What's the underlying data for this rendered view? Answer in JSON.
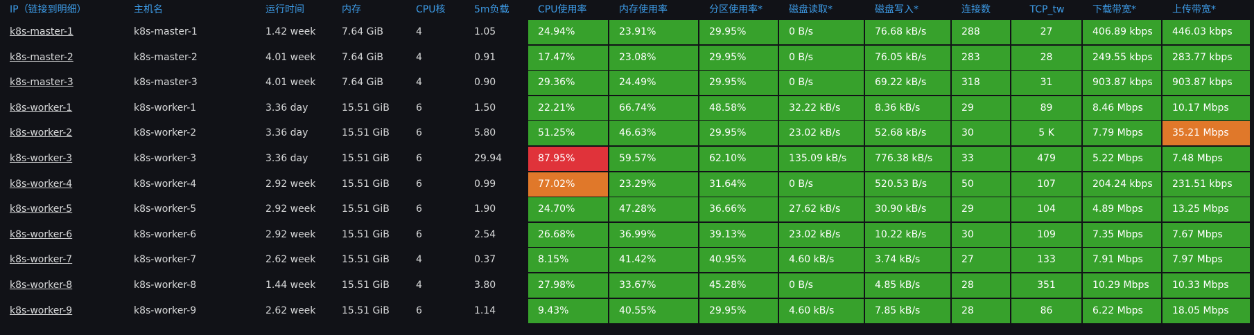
{
  "table": {
    "headers": [
      "IP（链接到明细）",
      "主机名",
      "运行时间",
      "内存",
      "CPU核",
      "5m负载",
      "CPU使用率",
      "内存使用率",
      "分区使用率*",
      "磁盘读取*",
      "磁盘写入*",
      "连接数",
      "TCP_tw",
      "下载带宽*",
      "上传带宽*"
    ],
    "rows": [
      [
        "k8s-master-1",
        "k8s-master-1",
        "1.42 week",
        "7.64 GiB",
        "4",
        "1.05",
        "24.94%",
        "23.91%",
        "29.95%",
        "0 B/s",
        "76.68 kB/s",
        "288",
        "27",
        "406.89 kbps",
        "446.03 kbps"
      ],
      [
        "k8s-master-2",
        "k8s-master-2",
        "4.01 week",
        "7.64 GiB",
        "4",
        "0.91",
        "17.47%",
        "23.08%",
        "29.95%",
        "0 B/s",
        "76.05 kB/s",
        "283",
        "28",
        "249.55 kbps",
        "283.77 kbps"
      ],
      [
        "k8s-master-3",
        "k8s-master-3",
        "4.01 week",
        "7.64 GiB",
        "4",
        "0.90",
        "29.36%",
        "24.49%",
        "29.95%",
        "0 B/s",
        "69.22 kB/s",
        "318",
        "31",
        "903.87 kbps",
        "903.87 kbps"
      ],
      [
        "k8s-worker-1",
        "k8s-worker-1",
        "3.36 day",
        "15.51 GiB",
        "6",
        "1.50",
        "22.21%",
        "66.74%",
        "48.58%",
        "32.22 kB/s",
        "8.36 kB/s",
        "29",
        "89",
        "8.46 Mbps",
        "10.17 Mbps"
      ],
      [
        "k8s-worker-2",
        "k8s-worker-2",
        "3.36 day",
        "15.51 GiB",
        "6",
        "5.80",
        "51.25%",
        "46.63%",
        "29.95%",
        "23.02 kB/s",
        "52.68 kB/s",
        "30",
        "5 K",
        "7.79 Mbps",
        "35.21 Mbps"
      ],
      [
        "k8s-worker-3",
        "k8s-worker-3",
        "3.36 day",
        "15.51 GiB",
        "6",
        "29.94",
        "87.95%",
        "59.57%",
        "62.10%",
        "135.09 kB/s",
        "776.38 kB/s",
        "33",
        "479",
        "5.22 Mbps",
        "7.48 Mbps"
      ],
      [
        "k8s-worker-4",
        "k8s-worker-4",
        "2.92 week",
        "15.51 GiB",
        "6",
        "0.99",
        "77.02%",
        "23.29%",
        "31.64%",
        "0 B/s",
        "520.53 B/s",
        "50",
        "107",
        "204.24 kbps",
        "231.51 kbps"
      ],
      [
        "k8s-worker-5",
        "k8s-worker-5",
        "2.92 week",
        "15.51 GiB",
        "6",
        "1.90",
        "24.70%",
        "47.28%",
        "36.66%",
        "27.62 kB/s",
        "30.90 kB/s",
        "29",
        "104",
        "4.89 Mbps",
        "13.25 Mbps"
      ],
      [
        "k8s-worker-6",
        "k8s-worker-6",
        "2.92 week",
        "15.51 GiB",
        "6",
        "2.54",
        "26.68%",
        "36.99%",
        "39.13%",
        "23.02 kB/s",
        "10.22 kB/s",
        "30",
        "109",
        "7.35 Mbps",
        "7.67 Mbps"
      ],
      [
        "k8s-worker-7",
        "k8s-worker-7",
        "2.62 week",
        "15.51 GiB",
        "4",
        "0.37",
        "8.15%",
        "41.42%",
        "40.95%",
        "4.60 kB/s",
        "3.74 kB/s",
        "27",
        "133",
        "7.91 Mbps",
        "7.97 Mbps"
      ],
      [
        "k8s-worker-8",
        "k8s-worker-8",
        "1.44 week",
        "15.51 GiB",
        "4",
        "3.80",
        "27.98%",
        "33.67%",
        "45.28%",
        "0 B/s",
        "4.85 kB/s",
        "28",
        "351",
        "10.29 Mbps",
        "10.33 Mbps"
      ],
      [
        "k8s-worker-9",
        "k8s-worker-9",
        "2.62 week",
        "15.51 GiB",
        "6",
        "1.14",
        "9.43%",
        "40.55%",
        "29.95%",
        "4.60 kB/s",
        "7.85 kB/s",
        "28",
        "86",
        "6.22 Mbps",
        "18.05 Mbps"
      ]
    ],
    "cell_colors": [
      [
        "#37a12c",
        "#37a12c",
        "#37a12c",
        "#37a12c",
        "#37a12c",
        "#37a12c",
        "#37a12c",
        "#37a12c",
        "#37a12c"
      ],
      [
        "#37a12c",
        "#37a12c",
        "#37a12c",
        "#37a12c",
        "#37a12c",
        "#37a12c",
        "#37a12c",
        "#37a12c",
        "#37a12c"
      ],
      [
        "#37a12c",
        "#37a12c",
        "#37a12c",
        "#37a12c",
        "#37a12c",
        "#37a12c",
        "#37a12c",
        "#37a12c",
        "#37a12c"
      ],
      [
        "#37a12c",
        "#37a12c",
        "#37a12c",
        "#37a12c",
        "#37a12c",
        "#37a12c",
        "#37a12c",
        "#37a12c",
        "#37a12c"
      ],
      [
        "#37a12c",
        "#37a12c",
        "#37a12c",
        "#37a12c",
        "#37a12c",
        "#37a12c",
        "#37a12c",
        "#37a12c",
        "#e0782a"
      ],
      [
        "#e0333a",
        "#37a12c",
        "#37a12c",
        "#37a12c",
        "#37a12c",
        "#37a12c",
        "#37a12c",
        "#37a12c",
        "#37a12c"
      ],
      [
        "#e0782a",
        "#37a12c",
        "#37a12c",
        "#37a12c",
        "#37a12c",
        "#37a12c",
        "#37a12c",
        "#37a12c",
        "#37a12c"
      ],
      [
        "#37a12c",
        "#37a12c",
        "#37a12c",
        "#37a12c",
        "#37a12c",
        "#37a12c",
        "#37a12c",
        "#37a12c",
        "#37a12c"
      ],
      [
        "#37a12c",
        "#37a12c",
        "#37a12c",
        "#37a12c",
        "#37a12c",
        "#37a12c",
        "#37a12c",
        "#37a12c",
        "#37a12c"
      ],
      [
        "#37a12c",
        "#37a12c",
        "#37a12c",
        "#37a12c",
        "#37a12c",
        "#37a12c",
        "#37a12c",
        "#37a12c",
        "#37a12c"
      ],
      [
        "#37a12c",
        "#37a12c",
        "#37a12c",
        "#37a12c",
        "#37a12c",
        "#37a12c",
        "#37a12c",
        "#37a12c",
        "#37a12c"
      ],
      [
        "#37a12c",
        "#37a12c",
        "#37a12c",
        "#37a12c",
        "#37a12c",
        "#37a12c",
        "#37a12c",
        "#37a12c",
        "#37a12c"
      ]
    ]
  }
}
